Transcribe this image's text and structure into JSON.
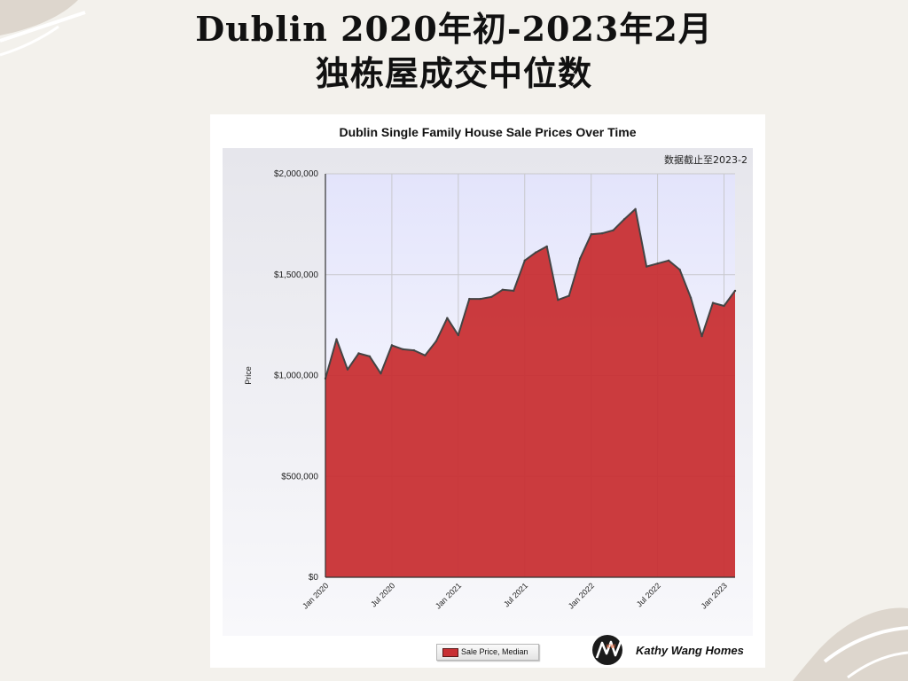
{
  "page": {
    "title_line1": "Dublin 2020年初-2023年2月",
    "title_line2": "独栋屋成交中位数"
  },
  "brand": {
    "name": "Kathy Wang Homes",
    "logo_text": "KW"
  },
  "colors": {
    "fill": "#c83034",
    "line": "#444444",
    "background": "#f3f1ec",
    "plot_top": "#e3e4fb"
  },
  "chart_data": {
    "type": "area",
    "title": "Dublin Single Family House Sale Prices Over Time",
    "annotation": "数据截止至2023-2",
    "xlabel": "",
    "ylabel": "Price",
    "ylim": [
      0,
      2000000
    ],
    "yticks": [
      0,
      500000,
      1000000,
      1500000,
      2000000
    ],
    "ytick_labels": [
      "$0",
      "$500,000",
      "$1,000,000",
      "$1,500,000",
      "$2,000,000"
    ],
    "xtick_labels": [
      "Jan 2020",
      "Jul 2020",
      "Jan 2021",
      "Jul 2021",
      "Jan 2022",
      "Jul 2022",
      "Jan 2023"
    ],
    "grid": true,
    "legend_position": "bottom-center",
    "series": [
      {
        "name": "Sale Price, Median",
        "x": [
          "2020-01",
          "2020-02",
          "2020-03",
          "2020-04",
          "2020-05",
          "2020-06",
          "2020-07",
          "2020-08",
          "2020-09",
          "2020-10",
          "2020-11",
          "2020-12",
          "2021-01",
          "2021-02",
          "2021-03",
          "2021-04",
          "2021-05",
          "2021-06",
          "2021-07",
          "2021-08",
          "2021-09",
          "2021-10",
          "2021-11",
          "2021-12",
          "2022-01",
          "2022-02",
          "2022-03",
          "2022-04",
          "2022-05",
          "2022-06",
          "2022-07",
          "2022-08",
          "2022-09",
          "2022-10",
          "2022-11",
          "2022-12",
          "2023-01",
          "2023-02"
        ],
        "values": [
          985000,
          1180000,
          1030000,
          1110000,
          1095000,
          1010000,
          1150000,
          1130000,
          1125000,
          1100000,
          1170000,
          1285000,
          1200000,
          1380000,
          1380000,
          1390000,
          1425000,
          1420000,
          1570000,
          1610000,
          1640000,
          1375000,
          1395000,
          1580000,
          1700000,
          1705000,
          1720000,
          1775000,
          1825000,
          1540000,
          1555000,
          1570000,
          1525000,
          1385000,
          1195000,
          1360000,
          1345000,
          1420000
        ]
      }
    ]
  }
}
